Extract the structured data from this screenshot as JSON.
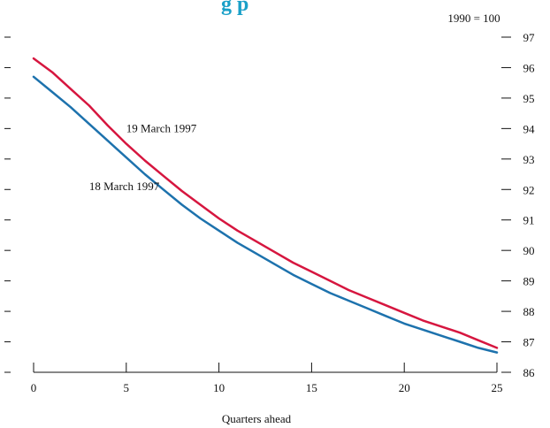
{
  "chart_data": {
    "type": "line",
    "title_fragment": "g  p",
    "xlabel": "Quarters ahead",
    "unit_note": "1990  = 100",
    "xlim": [
      0,
      25
    ],
    "ylim": [
      86,
      97
    ],
    "x_ticks": [
      0,
      5,
      10,
      15,
      20,
      25
    ],
    "y_ticks": [
      86,
      87,
      88,
      89,
      90,
      91,
      92,
      93,
      94,
      95,
      96,
      97
    ],
    "left_axis_ticks": 12,
    "series": [
      {
        "name": "19 March 1997",
        "color": "#d6163f",
        "x": [
          0,
          1,
          2,
          3,
          4,
          5,
          6,
          7,
          8,
          9,
          10,
          11,
          12,
          13,
          14,
          15,
          16,
          17,
          18,
          19,
          20,
          21,
          22,
          23,
          24,
          25
        ],
        "values": [
          96.3,
          95.85,
          95.3,
          94.75,
          94.1,
          93.5,
          92.95,
          92.45,
          91.95,
          91.5,
          91.05,
          90.65,
          90.3,
          89.95,
          89.6,
          89.3,
          89.0,
          88.7,
          88.45,
          88.2,
          87.95,
          87.7,
          87.5,
          87.3,
          87.05,
          86.8
        ]
      },
      {
        "name": "18 March 1997",
        "color": "#1d72ad",
        "x": [
          0,
          1,
          2,
          3,
          4,
          5,
          6,
          7,
          8,
          9,
          10,
          11,
          12,
          13,
          14,
          15,
          16,
          17,
          18,
          19,
          20,
          21,
          22,
          23,
          24,
          25
        ],
        "values": [
          95.7,
          95.2,
          94.7,
          94.15,
          93.6,
          93.05,
          92.5,
          92.0,
          91.5,
          91.05,
          90.65,
          90.25,
          89.9,
          89.55,
          89.2,
          88.9,
          88.6,
          88.35,
          88.1,
          87.85,
          87.6,
          87.4,
          87.2,
          87.0,
          86.8,
          86.65
        ]
      }
    ],
    "annotations": [
      {
        "text": "19 March 1997",
        "x": 5,
        "y": 94.0
      },
      {
        "text": "18 March 1997",
        "x": 3,
        "y": 92.1
      }
    ]
  }
}
